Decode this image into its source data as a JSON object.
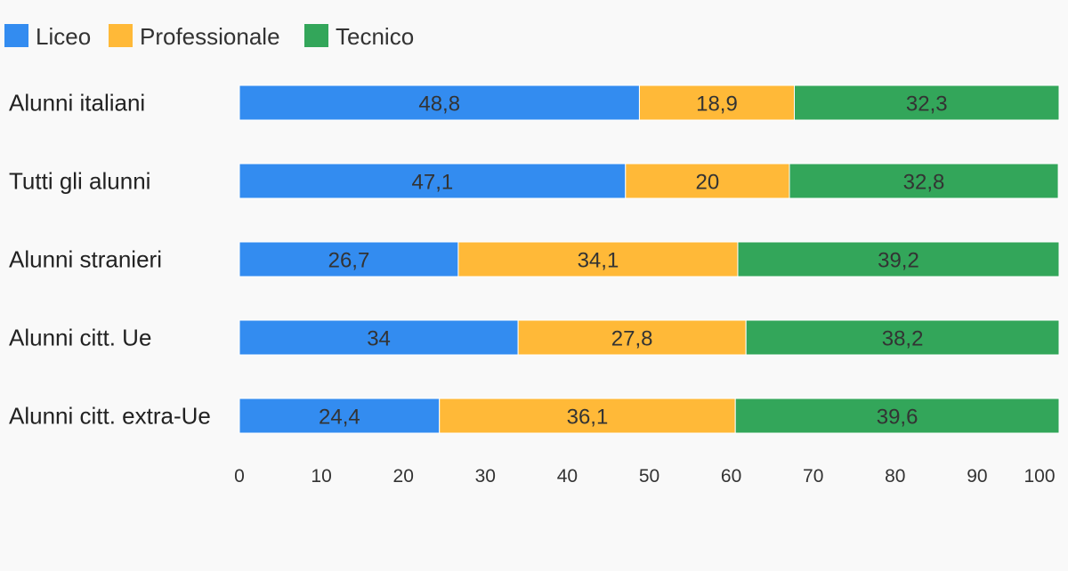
{
  "chart_data": {
    "type": "bar",
    "orientation": "horizontal",
    "stacked": true,
    "categories": [
      "Alunni italiani",
      "Tutti gli alunni",
      "Alunni stranieri",
      "Alunni citt. Ue",
      "Alunni citt. extra-Ue"
    ],
    "series": [
      {
        "name": "Liceo",
        "color": "#338cf0",
        "values": [
          48.8,
          47.1,
          26.7,
          34,
          24.4
        ],
        "labels": [
          "48,8",
          "47,1",
          "26,7",
          "34",
          "24,4"
        ]
      },
      {
        "name": "Professionale",
        "color": "#ffb938",
        "values": [
          18.9,
          20,
          34.1,
          27.8,
          36.1
        ],
        "labels": [
          "18,9",
          "20",
          "34,1",
          "27,8",
          "36,1"
        ]
      },
      {
        "name": "Tecnico",
        "color": "#33a65a",
        "values": [
          32.3,
          32.8,
          39.2,
          38.2,
          39.6
        ],
        "labels": [
          "32,3",
          "32,8",
          "39,2",
          "38,2",
          "39,6"
        ]
      }
    ],
    "xlim": [
      0,
      100
    ],
    "xticks": [
      0,
      10,
      20,
      30,
      40,
      50,
      60,
      70,
      80,
      90,
      100
    ],
    "xtick_labels": [
      "0",
      "10",
      "20",
      "30",
      "40",
      "50",
      "60",
      "70",
      "80",
      "90",
      "100"
    ],
    "legend_position": "top-left",
    "grid": false
  }
}
